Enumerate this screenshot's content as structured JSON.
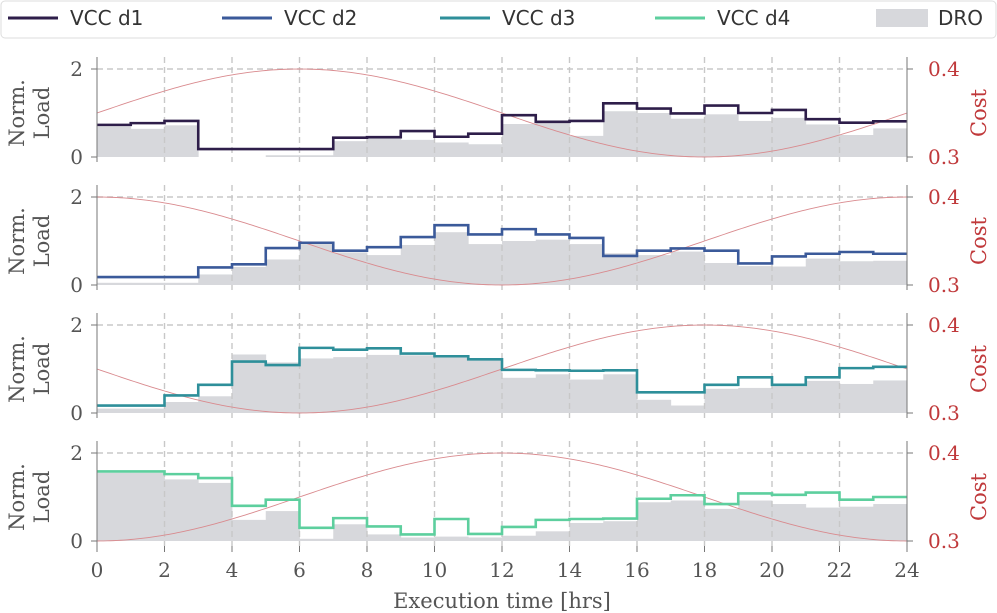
{
  "chart_data": {
    "type": "step",
    "legend": [
      "VCC d1",
      "VCC d2",
      "VCC d3",
      "VCC d4",
      "DRO"
    ],
    "colors": {
      "VCC d1": "#2e1e4a",
      "VCC d2": "#3b5a9a",
      "VCC d3": "#2e8f9a",
      "VCC d4": "#5dcf9e",
      "DRO": "#d7d8dc",
      "cost": "#d98a8e",
      "cost_axis": "#c0393b",
      "grid": "#c8c8c8",
      "axis": "#777777"
    },
    "xlabel": "Execution time [hrs]",
    "x_ticks": [
      "0",
      "2",
      "4",
      "6",
      "8",
      "10",
      "12",
      "14",
      "16",
      "18",
      "20",
      "22",
      "24"
    ],
    "xlim": [
      0,
      24
    ],
    "ylabel": "Norm. Load",
    "ylabel_lines": [
      "Norm.",
      "Load"
    ],
    "ylim": [
      0,
      2.1
    ],
    "y_ticks": [
      "0",
      "2"
    ],
    "cost_label": "Cost",
    "cost_lim": [
      0.3,
      0.4
    ],
    "cost_ticks": [
      "0.3",
      "0.4"
    ],
    "panels": [
      {
        "name": "VCC d1",
        "vcc": [
          0.73,
          0.77,
          0.82,
          0.18,
          0.18,
          0.18,
          0.18,
          0.44,
          0.45,
          0.59,
          0.46,
          0.53,
          0.95,
          0.8,
          0.82,
          1.22,
          1.1,
          0.99,
          1.17,
          1.0,
          1.07,
          0.86,
          0.78,
          0.81
        ],
        "dro": [
          0.7,
          0.64,
          0.72,
          0.0,
          0.0,
          0.04,
          0.04,
          0.36,
          0.43,
          0.39,
          0.33,
          0.29,
          0.75,
          0.82,
          0.48,
          1.04,
          1.0,
          0.87,
          0.97,
          0.82,
          0.89,
          0.74,
          0.5,
          0.65
        ],
        "cost_peak_hour": 6
      },
      {
        "name": "VCC d2",
        "vcc": [
          0.18,
          0.18,
          0.18,
          0.4,
          0.47,
          0.84,
          0.96,
          0.78,
          0.86,
          1.09,
          1.36,
          1.15,
          1.27,
          1.15,
          1.07,
          0.66,
          0.78,
          0.83,
          0.78,
          0.49,
          0.65,
          0.71,
          0.75,
          0.71
        ],
        "dro": [
          0.05,
          0.05,
          0.05,
          0.24,
          0.41,
          0.58,
          0.93,
          0.74,
          0.68,
          0.91,
          1.2,
          0.93,
          1.0,
          1.03,
          0.93,
          0.72,
          0.68,
          0.76,
          0.5,
          0.43,
          0.42,
          0.6,
          0.54,
          0.55
        ],
        "cost_peak_hour": 0
      },
      {
        "name": "VCC d3",
        "vcc": [
          0.17,
          0.17,
          0.4,
          0.64,
          1.17,
          1.09,
          1.48,
          1.44,
          1.47,
          1.35,
          1.29,
          1.22,
          0.98,
          0.97,
          0.96,
          0.97,
          0.47,
          0.47,
          0.64,
          0.81,
          0.64,
          0.81,
          1.02,
          1.05
        ],
        "dro": [
          0.1,
          0.1,
          0.25,
          0.38,
          1.33,
          1.15,
          1.24,
          1.27,
          1.32,
          1.31,
          1.29,
          1.23,
          0.8,
          0.88,
          0.76,
          0.88,
          0.3,
          0.17,
          0.55,
          0.57,
          0.61,
          0.73,
          0.66,
          0.74
        ],
        "cost_peak_hour": 18
      },
      {
        "name": "VCC d4",
        "vcc": [
          1.58,
          1.58,
          1.52,
          1.43,
          0.8,
          0.94,
          0.3,
          0.52,
          0.33,
          0.15,
          0.5,
          0.16,
          0.32,
          0.48,
          0.5,
          0.51,
          0.96,
          1.04,
          0.84,
          1.08,
          1.05,
          1.1,
          0.94,
          1.0
        ],
        "dro": [
          1.55,
          1.55,
          1.4,
          1.32,
          0.48,
          0.68,
          0.05,
          0.38,
          0.15,
          0.08,
          0.1,
          0.08,
          0.12,
          0.22,
          0.41,
          0.45,
          0.88,
          0.92,
          0.73,
          0.92,
          0.84,
          0.76,
          0.78,
          0.84
        ],
        "cost_peak_hour": 12
      }
    ]
  }
}
